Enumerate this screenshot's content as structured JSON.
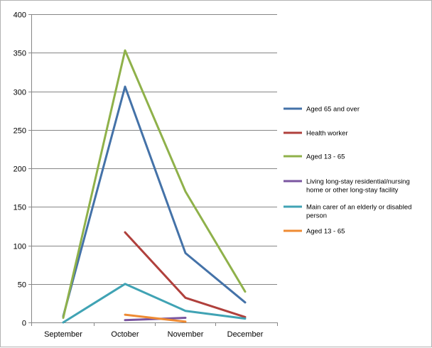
{
  "chart_data": {
    "type": "line",
    "title": "",
    "xlabel": "",
    "ylabel": "",
    "categories": [
      "September",
      "October",
      "November",
      "December"
    ],
    "ylim": [
      0,
      400
    ],
    "yticks": [
      "0",
      "50",
      "100",
      "150",
      "200",
      "250",
      "300",
      "350",
      "400"
    ],
    "grid": "horizontal",
    "legend_position": "right",
    "series": [
      {
        "name": "Aged 65 and over",
        "color": "#4472a8",
        "values": [
          8,
          306,
          90,
          26
        ]
      },
      {
        "name": "Health worker",
        "color": "#b0403c",
        "values": [
          null,
          117,
          32,
          7
        ]
      },
      {
        "name": "Aged 13 - 65",
        "color": "#8fb14a",
        "values": [
          6,
          353,
          170,
          40
        ]
      },
      {
        "name": "Living long-stay residential/nursing home or other long-stay facility",
        "color": "#7a55a0",
        "values": [
          null,
          3,
          6,
          null
        ]
      },
      {
        "name": "Main carer of an elderly or disabled person",
        "color": "#40a3b4",
        "values": [
          0,
          50,
          15,
          5
        ]
      },
      {
        "name": "Aged 13 - 65",
        "color": "#ef8b33",
        "values": [
          null,
          10,
          1,
          null
        ]
      }
    ],
    "legend_lines": [
      [
        "Aged 65 and over"
      ],
      [
        "Health worker"
      ],
      [
        "Aged 13 - 65"
      ],
      [
        "Living long-stay residential/nursing",
        "home or other long-stay facility"
      ],
      [
        "Main carer of an elderly or disabled",
        "person"
      ],
      [
        "Aged 13 - 65"
      ]
    ]
  }
}
